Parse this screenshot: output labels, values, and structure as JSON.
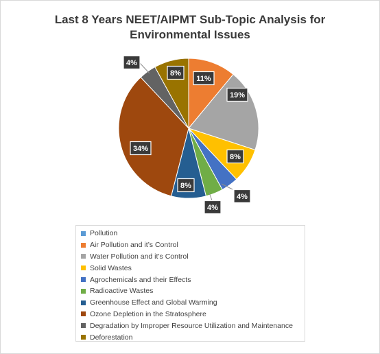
{
  "chart_data": {
    "type": "pie",
    "title": "Last 8 Years NEET/AIPMT Sub-Topic Analysis for Environmental Issues",
    "title_lines": [
      "Last 8 Years NEET/AIPMT Sub-Topic Analysis for",
      "Environmental Issues"
    ],
    "legend_position": "bottom",
    "slices": [
      {
        "label": "Pollution",
        "value": 0,
        "data_label": "",
        "color": "#5b9bd5"
      },
      {
        "label": "Air Pollution and it’s Control",
        "value": 11,
        "data_label": "11%",
        "color": "#ed7d31"
      },
      {
        "label": "Water Pollution and it’s Control",
        "value": 19,
        "data_label": "19%",
        "color": "#a5a5a5"
      },
      {
        "label": "Solid Wastes",
        "value": 8,
        "data_label": "8%",
        "color": "#ffc000"
      },
      {
        "label": "Agrochemicals and their Effects",
        "value": 4,
        "data_label": "4%",
        "color": "#4472c4"
      },
      {
        "label": "Radioactive Wastes",
        "value": 4,
        "data_label": "4%",
        "color": "#70ad47"
      },
      {
        "label": "Greenhouse Effect and Global Warming",
        "value": 8,
        "data_label": "8%",
        "color": "#255e91"
      },
      {
        "label": "Ozone Depletion in the Stratosphere",
        "value": 34,
        "data_label": "34%",
        "color": "#9e480e"
      },
      {
        "label": "Degradation by Improper Resource Utilization and Maintenance",
        "value": 4,
        "data_label": "4%",
        "color": "#636363"
      },
      {
        "label": "Deforestation",
        "value": 8,
        "data_label": "8%",
        "color": "#997300"
      }
    ]
  }
}
